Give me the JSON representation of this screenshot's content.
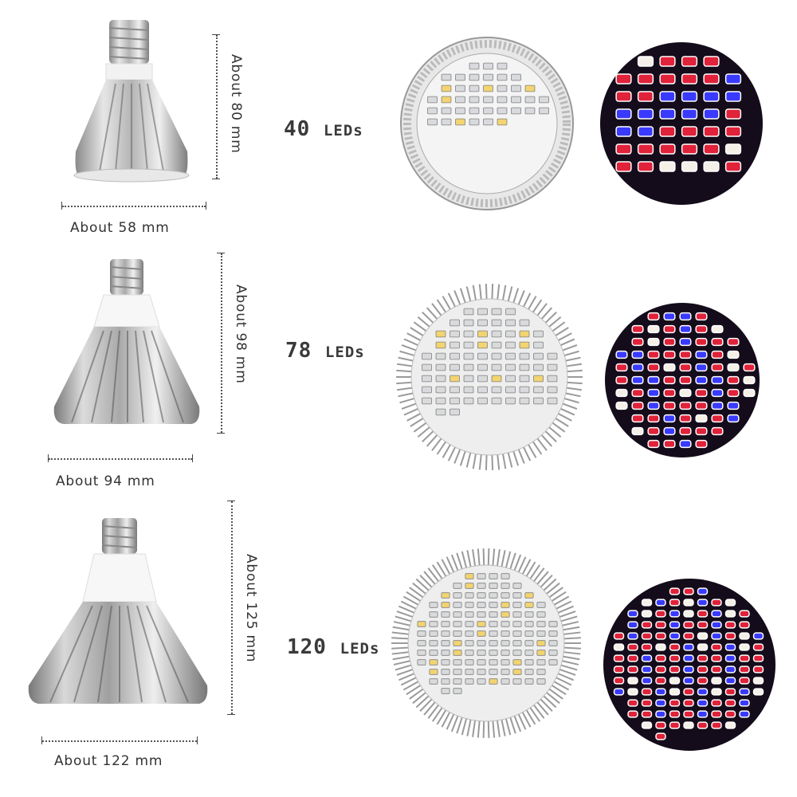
{
  "rows": [
    {
      "led_count": "40",
      "led_unit": "LEDs",
      "width_label": "About 58 mm",
      "height_label": "About 80 mm"
    },
    {
      "led_count": "78",
      "led_unit": "LEDs",
      "width_label": "About 94 mm",
      "height_label": "About 98 mm"
    },
    {
      "led_count": "120",
      "led_unit": "LEDs",
      "width_label": "About 122 mm",
      "height_label": "About 125 mm"
    }
  ],
  "colors": {
    "red_led": "#e0223a",
    "blue_led": "#3a3aff",
    "white_led": "#f4f0e8",
    "yellow_led": "#f3d36a",
    "dark_background": "#140c1a"
  }
}
